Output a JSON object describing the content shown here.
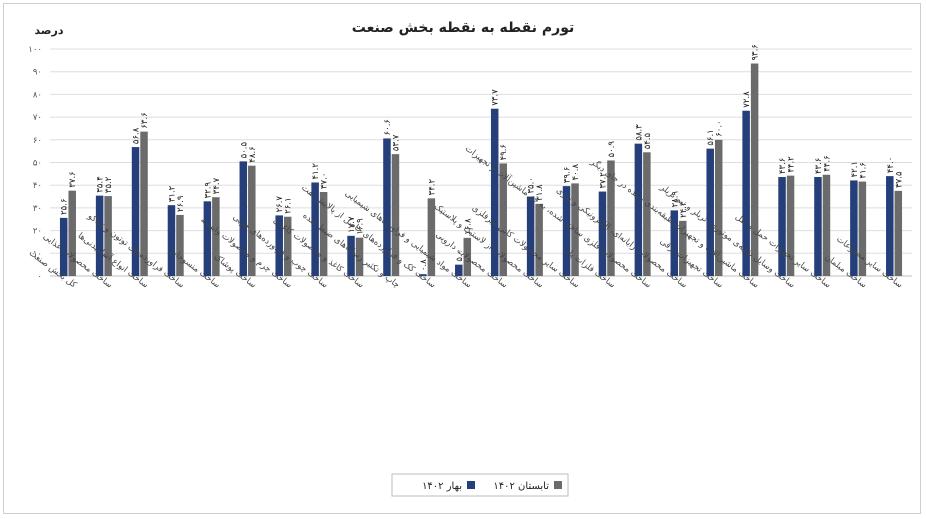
{
  "chart_data": {
    "type": "bar",
    "title": "تورم نقطه به نقطه بخش صنعت",
    "ylabel": "درصد",
    "ylim": [
      0,
      100
    ],
    "yticks": [
      "۰",
      "۱۰",
      "۲۰",
      "۳۰",
      "۴۰",
      "۵۰",
      "۶۰",
      "۷۰",
      "۸۰",
      "۹۰",
      "۱۰۰"
    ],
    "grid": true,
    "legend_position": "bottom",
    "categories": [
      "کل بخش صنعت",
      "ساخت محصولات غذایی",
      "ساخت انواع آشامیدنی‌ها",
      "ساخت فراورده‌های توتون و تنباکو",
      "ساخت منسوجات",
      "ساخت پوشاک",
      "ساخت چرم و محصولات وابسته",
      "ساخت چوب و فراورده‌های چوبی",
      "ساخت کاغذ و محصولات کاغذی",
      "چاپ و تکثیر رسانه‌های ضبط شده",
      "ساخت کک و فراورده‌های حاصل از پالایش نفت",
      "ساخت مواد شیمیایی و فراورده‌های شیمیایی",
      "ساخت محصولات دارویی",
      "ساخت محصولات از لاستیک و پلاستیک",
      "ساخت سایر محصولات کانی غیرفلزی",
      "ساخت فلزات پایه",
      "ساخت محصولات فلزی ساخته شده، به جز ماشین‌آلات و تجهیزات",
      "ساخت محصولات رایانه‌ای، الکترونیکی و نوری",
      "ساخت تجهیزات برقی",
      "ساخت ماشین‌آلات و تجهیزات طبقه‌بندی نشده در جای دیگر",
      "ساخت وسایل نقلیه‌ی موتوری، تریلر و نیم تریلر",
      "ساخت سایر تجهیزات حمل و نقل",
      "ساخت مبلمان",
      "ساخت سایر مصنوعات"
    ],
    "series": [
      {
        "name": "بهار ۱۴۰۲",
        "color": "#243f7a",
        "values": [
          25.6,
          35.4,
          56.8,
          31.2,
          32.9,
          50.5,
          26.7,
          41.2,
          17.7,
          60.6,
          0.8,
          5.0,
          73.7,
          35.0,
          39.6,
          37.2,
          58.3,
          28.9,
          56.1,
          72.8,
          43.6,
          43.6,
          42.1,
          44.0
        ],
        "labels": [
          "۲۵.۶",
          "۳۵.۴",
          "۵۶.۸",
          "۳۱.۲",
          "۳۲.۹",
          "۵۰.۵",
          "۲۶.۷",
          "۴۱.۲",
          "۱۷.۷",
          "۶۰.۶",
          "۰.۸",
          "۵.۰",
          "۷۳.۷",
          "۳۵.۰",
          "۳۹.۶",
          "۳۷.۲",
          "۵۸.۳",
          "۲۸.۹",
          "۵۶.۱",
          "۷۲.۸",
          "۴۳.۶",
          "۴۳.۶",
          "۴۲.۱",
          "۴۴.۰"
        ]
      },
      {
        "name": "تابستان ۱۴۰۲",
        "color": "#6b6b6b",
        "values": [
          37.6,
          35.2,
          63.6,
          26.9,
          34.7,
          48.6,
          26.1,
          37.0,
          16.9,
          53.7,
          34.2,
          16.8,
          49.6,
          31.8,
          40.8,
          50.9,
          54.5,
          24.3,
          60.0,
          93.6,
          44.2,
          44.6,
          41.6,
          37.5
        ],
        "labels": [
          "۳۷.۶",
          "۳۵.۲",
          "۶۳.۶",
          "۲۶.۹",
          "۳۴.۷",
          "۴۸.۶",
          "۲۶.۱",
          "۳۷.۰",
          "۱۶.۹",
          "۵۳.۷",
          "۳۴.۲",
          "۱۶.۸",
          "۴۹.۶",
          "۳۱.۸",
          "۴۰.۸",
          "۵۰.۹",
          "۵۴.۵",
          "۲۴.۳",
          "۶۰.۰",
          "۹۳.۶",
          "۴۴.۲",
          "۴۴.۶",
          "۴۱.۶",
          "۳۷.۵"
        ]
      }
    ]
  }
}
